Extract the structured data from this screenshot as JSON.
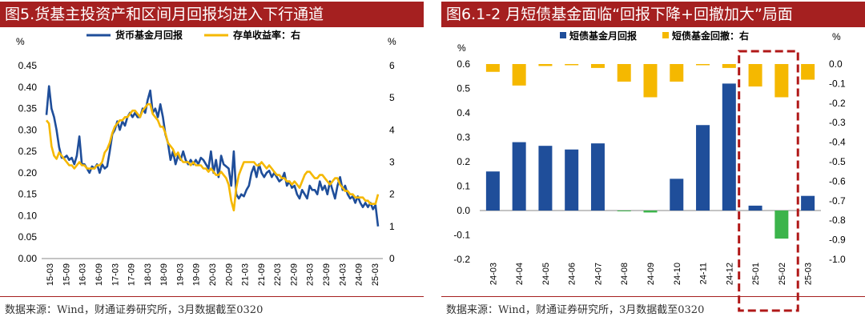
{
  "left": {
    "title": "图5.货基主投资产和区间月回报均进入下行通道",
    "source": "数据来源：Wind，财通证券研究所，3月数据截至0320",
    "chart_data": {
      "type": "line",
      "left_unit": "%",
      "right_unit": "%",
      "ylim_left": [
        0,
        0.45
      ],
      "ylim_right": [
        0,
        6
      ],
      "left_ticks": [
        "0.00",
        "0.05",
        "0.10",
        "0.15",
        "0.20",
        "0.25",
        "0.30",
        "0.35",
        "0.40",
        "0.45"
      ],
      "right_ticks": [
        "0",
        "1",
        "2",
        "3",
        "4",
        "5",
        "6"
      ],
      "x_ticks": [
        "15-03",
        "15-09",
        "16-03",
        "16-09",
        "17-03",
        "17-09",
        "18-03",
        "18-09",
        "19-03",
        "19-09",
        "20-03",
        "20-09",
        "21-03",
        "21-09",
        "22-03",
        "22-09",
        "23-03",
        "23-09",
        "24-03",
        "24-09",
        "25-03"
      ],
      "series": [
        {
          "name": "货币基金月回报",
          "axis": "left",
          "color": "#1f4e9a",
          "values": [
            0.335,
            0.402,
            0.35,
            0.33,
            0.3,
            0.26,
            0.235,
            0.235,
            0.24,
            0.23,
            0.235,
            0.22,
            0.24,
            0.285,
            0.22,
            0.22,
            0.21,
            0.2,
            0.215,
            0.21,
            0.22,
            0.2,
            0.22,
            0.21,
            0.215,
            0.25,
            0.29,
            0.3,
            0.32,
            0.3,
            0.32,
            0.31,
            0.33,
            0.34,
            0.33,
            0.34,
            0.33,
            0.33,
            0.35,
            0.34,
            0.37,
            0.392,
            0.34,
            0.35,
            0.33,
            0.36,
            0.33,
            0.29,
            0.27,
            0.23,
            0.25,
            0.22,
            0.24,
            0.23,
            0.25,
            0.23,
            0.22,
            0.23,
            0.22,
            0.23,
            0.22,
            0.235,
            0.23,
            0.22,
            0.21,
            0.25,
            0.2,
            0.23,
            0.19,
            0.24,
            0.22,
            0.215,
            0.21,
            0.17,
            0.25,
            0.15,
            0.14,
            0.15,
            0.145,
            0.16,
            0.17,
            0.2,
            0.215,
            0.19,
            0.22,
            0.2,
            0.19,
            0.2,
            0.205,
            0.19,
            0.2,
            0.19,
            0.18,
            0.185,
            0.2,
            0.17,
            0.18,
            0.165,
            0.17,
            0.15,
            0.14,
            0.16,
            0.15,
            0.14,
            0.17,
            0.16,
            0.16,
            0.15,
            0.18,
            0.16,
            0.17,
            0.15,
            0.18,
            0.16,
            0.14,
            0.17,
            0.19,
            0.16,
            0.17,
            0.15,
            0.14,
            0.145,
            0.13,
            0.145,
            0.13,
            0.12,
            0.13,
            0.12,
            0.13,
            0.115,
            0.125,
            0.075
          ]
        },
        {
          "name": "存单收益率：右",
          "axis": "right",
          "color": "#f5b800",
          "values": [
            4.3,
            4.2,
            3.5,
            3.2,
            3.1,
            3.3,
            3.2,
            3.1,
            3.0,
            2.9,
            2.9,
            2.8,
            2.9,
            3.0,
            2.9,
            2.9,
            2.8,
            2.8,
            2.8,
            2.8,
            2.9,
            2.9,
            3.0,
            3.3,
            3.4,
            3.6,
            3.9,
            4.1,
            4.2,
            4.3,
            4.3,
            4.4,
            4.4,
            4.5,
            4.6,
            4.6,
            4.5,
            4.4,
            4.6,
            4.7,
            4.8,
            4.8,
            4.5,
            4.4,
            4.3,
            4.1,
            4.1,
            3.9,
            3.6,
            3.5,
            3.4,
            3.2,
            3.3,
            3.1,
            3.0,
            3.0,
            3.0,
            2.9,
            3.0,
            2.9,
            2.9,
            2.9,
            2.8,
            2.8,
            2.7,
            2.8,
            2.7,
            2.6,
            2.6,
            2.7,
            2.6,
            2.5,
            2.3,
            1.8,
            1.5,
            2.2,
            2.6,
            2.8,
            3.0,
            3.0,
            3.0,
            3.0,
            3.0,
            2.9,
            2.9,
            3.0,
            2.9,
            2.8,
            2.9,
            2.8,
            2.7,
            2.6,
            2.6,
            2.5,
            2.5,
            2.4,
            2.4,
            2.3,
            2.4,
            2.3,
            2.2,
            2.4,
            2.6,
            2.7,
            2.7,
            2.6,
            2.5,
            2.5,
            2.6,
            2.6,
            2.5,
            2.4,
            2.3,
            2.4,
            2.5,
            2.5,
            2.3,
            2.2,
            2.1,
            2.1,
            2.0,
            2.0,
            1.9,
            1.9,
            1.9,
            1.9,
            1.8,
            1.8,
            1.7,
            1.7,
            1.7,
            2.0
          ]
        }
      ]
    }
  },
  "right": {
    "title": "图6.1-2 月短债基金面临“回报下降+回撤加大”局面",
    "source": "数据来源：Wind，财通证券研究所，3月数据截至0320",
    "chart_data": {
      "type": "bar",
      "left_unit": "%",
      "right_unit": "%",
      "ylim_left": [
        -0.2,
        0.6
      ],
      "ylim_right": [
        -1.0,
        0.0
      ],
      "left_ticks": [
        "-0.2",
        "-0.1",
        "0.0",
        "0.1",
        "0.2",
        "0.3",
        "0.4",
        "0.5",
        "0.6"
      ],
      "right_ticks": [
        "0.0",
        "-0.1",
        "-0.2",
        "-0.3",
        "-0.4",
        "-0.5",
        "-0.6",
        "-0.7",
        "-0.8",
        "-0.9",
        "-1.0"
      ],
      "categories": [
        "24-03",
        "24-04",
        "24-05",
        "24-06",
        "24-07",
        "24-08",
        "24-09",
        "24-10",
        "24-11",
        "24-12",
        "25-01",
        "25-02",
        "25-03"
      ],
      "highlight": [
        "25-01",
        "25-02"
      ],
      "series": [
        {
          "name": "短债基金月回报",
          "axis": "left",
          "color": "#1f4e9a",
          "negative_color": "#3cb44b",
          "values": [
            0.16,
            0.28,
            0.265,
            0.25,
            0.275,
            -0.003,
            -0.008,
            0.13,
            0.35,
            0.52,
            0.02,
            -0.115,
            0.06
          ]
        },
        {
          "name": "短债基金回撤：右",
          "axis": "right",
          "color": "#f5b800",
          "values": [
            -0.04,
            -0.11,
            -0.01,
            -0.005,
            -0.02,
            -0.09,
            -0.17,
            -0.09,
            0.0,
            -0.02,
            -0.115,
            -0.17,
            -0.08
          ]
        }
      ]
    }
  }
}
